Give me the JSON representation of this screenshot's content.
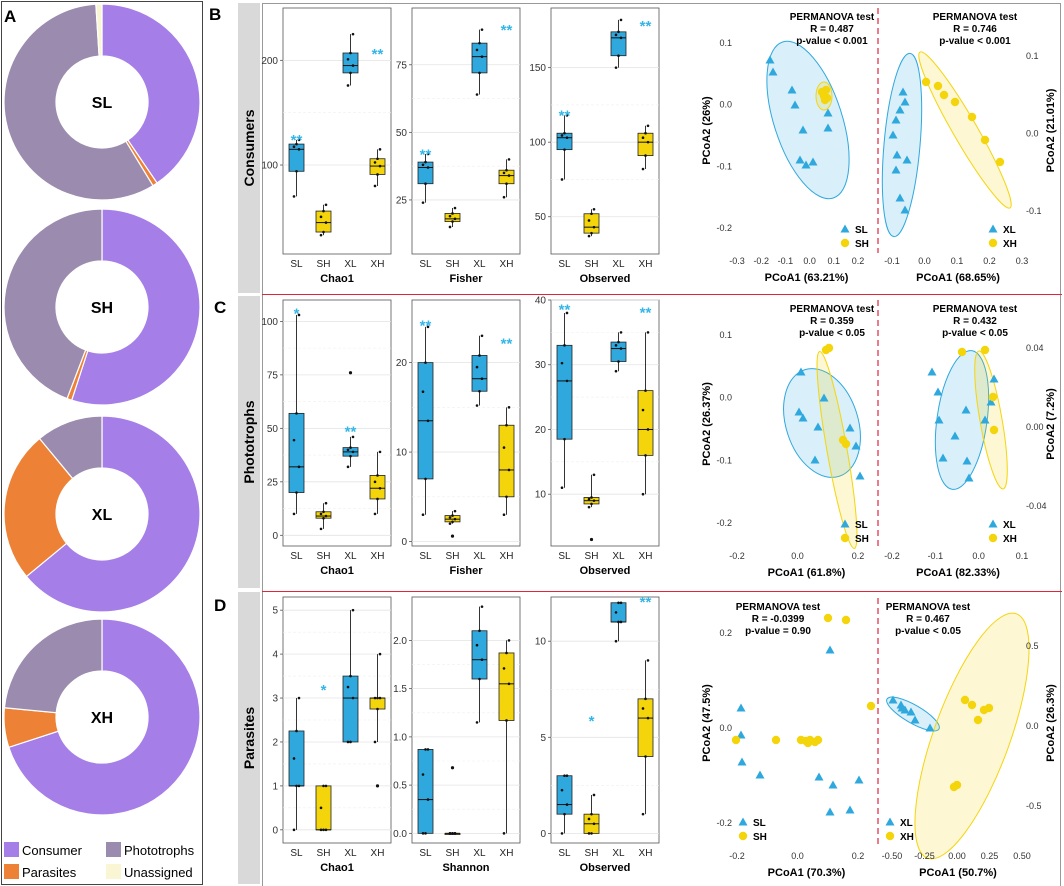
{
  "panel_letters": {
    "a": "A",
    "b": "B",
    "c": "C",
    "d": "D"
  },
  "row_labels": {
    "b": "Consumers",
    "c": "Phototrophs",
    "d": "Parasites"
  },
  "colors": {
    "consumer": "#A57EE8",
    "phototroph": "#9B8BAE",
    "parasite": "#ED8236",
    "unassigned": "#FAF6D4",
    "blue": "#2FA8DE",
    "yellow": "#F4D50C",
    "dashed": "#E0263A",
    "sep": "#E0263A"
  },
  "legend": {
    "consumer": "Consumer",
    "phototrophs": "Phototrophs",
    "parasites": "Parasites",
    "unassigned": "Unassigned"
  },
  "chart_data": [
    {
      "type": "pie",
      "title": "SL",
      "slices": [
        {
          "label": "Consumer",
          "value": 40.5
        },
        {
          "label": "Parasites",
          "value": 0.8
        },
        {
          "label": "Phototrophs",
          "value": 57.7
        },
        {
          "label": "Unassigned",
          "value": 1.0
        }
      ]
    },
    {
      "type": "pie",
      "title": "SH",
      "slices": [
        {
          "label": "Consumer",
          "value": 55
        },
        {
          "label": "Parasites",
          "value": 0.8
        },
        {
          "label": "Phototrophs",
          "value": 44.2
        }
      ]
    },
    {
      "type": "pie",
      "title": "XL",
      "slices": [
        {
          "label": "Consumer",
          "value": 64
        },
        {
          "label": "Parasites",
          "value": 25
        },
        {
          "label": "Phototrophs",
          "value": 11
        }
      ]
    },
    {
      "type": "pie",
      "title": "XH",
      "slices": [
        {
          "label": "Consumer",
          "value": 70
        },
        {
          "label": "Parasites",
          "value": 6.5
        },
        {
          "label": "Phototrophs",
          "value": 23.5
        }
      ]
    },
    {
      "type": "box",
      "metric": "Chao1",
      "categories": [
        "SL",
        "SH",
        "XL",
        "XH"
      ],
      "yticks": [
        100,
        200
      ],
      "ylim": [
        15,
        250
      ],
      "boxes": [
        {
          "q1": 94,
          "med": 115,
          "q3": 120,
          "lo": 70,
          "hi": 124,
          "out": []
        },
        {
          "q1": 36,
          "med": 45,
          "q3": 56,
          "lo": 33,
          "hi": 62,
          "out": []
        },
        {
          "q1": 188,
          "med": 195,
          "q3": 207,
          "lo": 176,
          "hi": 225,
          "out": []
        },
        {
          "q1": 91,
          "med": 99,
          "q3": 106,
          "lo": 80,
          "hi": 115,
          "out": []
        }
      ],
      "sig": [
        {
          "cat": 0,
          "y": 127,
          "label": "**"
        },
        {
          "cat": 3,
          "y": 209,
          "label": "**"
        }
      ]
    },
    {
      "type": "box",
      "metric": "Fisher",
      "categories": [
        "SL",
        "SH",
        "XL",
        "XH"
      ],
      "yticks": [
        25,
        50,
        75
      ],
      "ylim": [
        5,
        96
      ],
      "boxes": [
        {
          "q1": 31,
          "med": 37,
          "q3": 39,
          "lo": 24,
          "hi": 42,
          "out": []
        },
        {
          "q1": 17,
          "med": 18,
          "q3": 20,
          "lo": 15,
          "hi": 22,
          "out": []
        },
        {
          "q1": 72,
          "med": 78,
          "q3": 83,
          "lo": 64,
          "hi": 88,
          "out": []
        },
        {
          "q1": 31,
          "med": 34,
          "q3": 36,
          "lo": 26,
          "hi": 40,
          "out": []
        }
      ],
      "sig": [
        {
          "cat": 0,
          "y": 43,
          "label": "**"
        },
        {
          "cat": 3,
          "y": 89,
          "label": "**"
        }
      ]
    },
    {
      "type": "box",
      "metric": "Observed",
      "categories": [
        "SL",
        "SH",
        "XL",
        "XH"
      ],
      "yticks": [
        50,
        100,
        150
      ],
      "ylim": [
        25,
        190
      ],
      "boxes": [
        {
          "q1": 95,
          "med": 103,
          "q3": 106,
          "lo": 75,
          "hi": 118,
          "out": []
        },
        {
          "q1": 39,
          "med": 43,
          "q3": 52,
          "lo": 37,
          "hi": 55,
          "out": []
        },
        {
          "q1": 158,
          "med": 170,
          "q3": 174,
          "lo": 150,
          "hi": 182,
          "out": []
        },
        {
          "q1": 91,
          "med": 100,
          "q3": 106,
          "lo": 82,
          "hi": 111,
          "out": []
        }
      ],
      "sig": [
        {
          "cat": 0,
          "y": 120,
          "label": "**"
        },
        {
          "cat": 3,
          "y": 180,
          "label": "**"
        }
      ]
    },
    {
      "type": "box",
      "metric": "Chao1",
      "categories": [
        "SL",
        "SH",
        "XL",
        "XH"
      ],
      "yticks": [
        0,
        25,
        50,
        75,
        100
      ],
      "ylim": [
        -5,
        110
      ],
      "boxes": [
        {
          "q1": 20,
          "med": 32,
          "q3": 57,
          "lo": 10,
          "hi": 103,
          "out": []
        },
        {
          "q1": 8,
          "med": 9,
          "q3": 11,
          "lo": 3,
          "hi": 15,
          "out": []
        },
        {
          "q1": 37,
          "med": 39,
          "q3": 41,
          "lo": 32,
          "hi": 46,
          "out": [
            76
          ]
        },
        {
          "q1": 17,
          "med": 22,
          "q3": 28,
          "lo": 10,
          "hi": 39,
          "out": []
        }
      ],
      "sig": [
        {
          "cat": 0,
          "y": 105,
          "label": "*"
        },
        {
          "cat": 2,
          "y": 50,
          "label": "**"
        }
      ]
    },
    {
      "type": "box",
      "metric": "Fisher",
      "categories": [
        "SL",
        "SH",
        "XL",
        "XH"
      ],
      "yticks": [
        0,
        10,
        20
      ],
      "ylim": [
        -0.5,
        27
      ],
      "boxes": [
        {
          "q1": 7,
          "med": 13.5,
          "q3": 20,
          "lo": 3,
          "hi": 24,
          "out": []
        },
        {
          "q1": 2.2,
          "med": 2.5,
          "q3": 2.9,
          "lo": 2,
          "hi": 3.4,
          "out": [
            0.6
          ]
        },
        {
          "q1": 16.8,
          "med": 18.2,
          "q3": 20.8,
          "lo": 15.2,
          "hi": 23,
          "out": []
        },
        {
          "q1": 5,
          "med": 8,
          "q3": 13,
          "lo": 3,
          "hi": 15,
          "out": []
        }
      ],
      "sig": [
        {
          "cat": 0,
          "y": 24.5,
          "label": "**"
        },
        {
          "cat": 3,
          "y": 22.5,
          "label": "**"
        }
      ]
    },
    {
      "type": "box",
      "metric": "Observed",
      "categories": [
        "SL",
        "SH",
        "XL",
        "XH"
      ],
      "yticks": [
        10,
        20,
        30,
        40
      ],
      "ylim": [
        2,
        40
      ],
      "boxes": [
        {
          "q1": 18.5,
          "med": 27.5,
          "q3": 33,
          "lo": 11,
          "hi": 38,
          "out": []
        },
        {
          "q1": 8.5,
          "med": 9,
          "q3": 9.5,
          "lo": 8,
          "hi": 13,
          "out": [
            3
          ]
        },
        {
          "q1": 30.5,
          "med": 32.5,
          "q3": 33.5,
          "lo": 29,
          "hi": 35,
          "out": []
        },
        {
          "q1": 16,
          "med": 20,
          "q3": 26,
          "lo": 10,
          "hi": 35,
          "out": []
        }
      ],
      "sig": [
        {
          "cat": 0,
          "y": 39,
          "label": "**"
        },
        {
          "cat": 3,
          "y": 38.5,
          "label": "**"
        }
      ]
    },
    {
      "type": "box",
      "metric": "Chao1",
      "categories": [
        "SL",
        "SH",
        "XL",
        "XH"
      ],
      "yticks": [
        0,
        1,
        2,
        3,
        4,
        5
      ],
      "ylim": [
        -0.3,
        5.3
      ],
      "boxes": [
        {
          "q1": 1,
          "med": 1,
          "q3": 2.25,
          "lo": 0,
          "hi": 3,
          "out": []
        },
        {
          "q1": 0,
          "med": 0,
          "q3": 1,
          "lo": 0,
          "hi": 1,
          "out": []
        },
        {
          "q1": 2,
          "med": 3,
          "q3": 3.5,
          "lo": 2,
          "hi": 5,
          "out": []
        },
        {
          "q1": 2.75,
          "med": 3,
          "q3": 3,
          "lo": 2,
          "hi": 4,
          "out": [
            1
          ]
        }
      ],
      "sig": [
        {
          "cat": 1,
          "y": 3.25,
          "label": "*"
        }
      ]
    },
    {
      "type": "box",
      "metric": "Shannon",
      "categories": [
        "SL",
        "SH",
        "XL",
        "XH"
      ],
      "yticks": [
        0,
        0.5,
        1.0,
        1.5,
        2.0
      ],
      "ylim": [
        -0.1,
        2.45
      ],
      "boxes": [
        {
          "q1": 0,
          "med": 0.35,
          "q3": 0.87,
          "lo": 0,
          "hi": 0.87,
          "out": []
        },
        {
          "q1": 0,
          "med": 0,
          "q3": 0,
          "lo": 0,
          "hi": 0,
          "out": [
            0.68
          ]
        },
        {
          "q1": 1.6,
          "med": 1.8,
          "q3": 2.1,
          "lo": 1.15,
          "hi": 2.35,
          "out": []
        },
        {
          "q1": 1.17,
          "med": 1.55,
          "q3": 1.87,
          "lo": 0,
          "hi": 2.0,
          "out": []
        }
      ],
      "sig": []
    },
    {
      "type": "box",
      "metric": "Observed",
      "categories": [
        "SL",
        "SH",
        "XL",
        "XH"
      ],
      "yticks": [
        0,
        5,
        10
      ],
      "ylim": [
        -0.5,
        12.3
      ],
      "boxes": [
        {
          "q1": 1,
          "med": 1.5,
          "q3": 3,
          "lo": 0,
          "hi": 3,
          "out": []
        },
        {
          "q1": 0,
          "med": 0.5,
          "q3": 1,
          "lo": 0,
          "hi": 2,
          "out": []
        },
        {
          "q1": 11,
          "med": 11,
          "q3": 12,
          "lo": 10,
          "hi": 12,
          "out": []
        },
        {
          "q1": 4,
          "med": 6,
          "q3": 7,
          "lo": 1,
          "hi": 9,
          "out": []
        }
      ],
      "sig": [
        {
          "cat": 1,
          "y": 6,
          "label": "*"
        },
        {
          "cat": 3,
          "y": 12.2,
          "label": "**"
        }
      ]
    }
  ],
  "pcoa": [
    {
      "left": {
        "test": "PERMANOVA test",
        "r": "R = 0.487",
        "p": "p-value < 0.001",
        "xlabel": "PCoA1 (63.21%)",
        "ylabel": "PCoA2 (26%)",
        "xticks": [
          "-0.3",
          "-0.2",
          "-0.1",
          "0.0",
          "0.1",
          "0.2"
        ],
        "yticks": [
          "0.1",
          "0.0",
          "-0.1",
          "-0.2"
        ],
        "legend": [
          "SL",
          "SH"
        ]
      },
      "right": {
        "test": "PERMANOVA test",
        "r": "R = 0.746",
        "p": "p-value < 0.001",
        "xlabel": "PCoA1 (68.65%)",
        "ylabel": "PCoA2 (21.01%)",
        "xticks": [
          "-0.1",
          "0.0",
          "0.1",
          "0.2",
          "0.3"
        ],
        "yticks": [
          "0.1",
          "0.0",
          "-0.1"
        ],
        "legend": [
          "XL",
          "XH"
        ]
      }
    },
    {
      "left": {
        "test": "PERMANOVA test",
        "r": "R = 0.359",
        "p": "p-value < 0.05",
        "xlabel": "PCoA1 (61.8%)",
        "ylabel": "PCoA2 (26.37%)",
        "xticks": [
          "-0.2",
          "0.0",
          "0.2"
        ],
        "yticks": [
          "0.1",
          "0.0",
          "-0.1",
          "-0.2"
        ],
        "legend": [
          "SL",
          "SH"
        ]
      },
      "right": {
        "test": "PERMANOVA test",
        "r": "R = 0.432",
        "p": "p-value < 0.05",
        "xlabel": "PCoA1 (82.33%)",
        "ylabel": "PCoA2 (7.2%)",
        "xticks": [
          "-0.2",
          "-0.1",
          "0.0",
          "0.1"
        ],
        "yticks": [
          "0.04",
          "0.00",
          "-0.04"
        ],
        "legend": [
          "XL",
          "XH"
        ]
      }
    },
    {
      "left": {
        "test": "PERMANOVA test",
        "r": "R = -0.0399",
        "p": "p-value = 0.90",
        "xlabel": "PCoA1 (70.3%)",
        "ylabel": "PCoA2 (47.5%)",
        "xticks": [
          "-0.2",
          "0.0",
          "0.2"
        ],
        "yticks": [
          "0.2",
          "0.0",
          "-0.2"
        ],
        "legend": [
          "SL",
          "SH"
        ]
      },
      "right": {
        "test": "PERMANOVA test",
        "r": "R = 0.467",
        "p": "p-value < 0.05",
        "xlabel": "PCoA1 (50.7%)",
        "ylabel": "PCoA2 (26.3%)",
        "xticks": [
          "-0.50",
          "-0.25",
          "0.00",
          "0.25",
          "0.50"
        ],
        "yticks": [
          "0.5",
          "0.0",
          "-0.5"
        ],
        "legend": [
          "XL",
          "XH"
        ]
      }
    }
  ]
}
